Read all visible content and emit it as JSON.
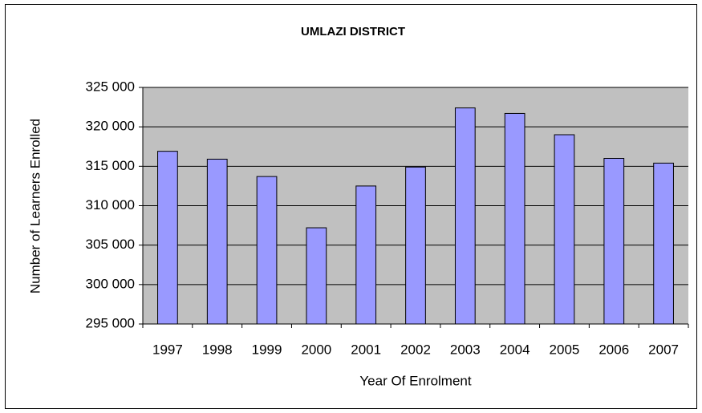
{
  "chart_data": {
    "type": "bar",
    "title": "UMLAZI DISTRICT",
    "x_label": "Year Of Enrolment",
    "y_label": "Number of Learners Enrolled",
    "categories": [
      "1997",
      "1998",
      "1999",
      "2000",
      "2001",
      "2002",
      "2003",
      "2004",
      "2005",
      "2006",
      "2007"
    ],
    "values": [
      316900,
      315900,
      313700,
      307200,
      312500,
      314900,
      322400,
      321700,
      319000,
      316000,
      315400
    ],
    "color": "#9999ff",
    "plot_background": "#c0c0c0",
    "ylim": [
      295000,
      325000
    ],
    "yticks": [
      {
        "value": 295000,
        "label": "295 000"
      },
      {
        "value": 300000,
        "label": "300 000"
      },
      {
        "value": 305000,
        "label": "305 000"
      },
      {
        "value": 310000,
        "label": "310 000"
      },
      {
        "value": 315000,
        "label": "315 000"
      },
      {
        "value": 320000,
        "label": "320 000"
      },
      {
        "value": 325000,
        "label": "325 000"
      }
    ],
    "grid": true
  }
}
